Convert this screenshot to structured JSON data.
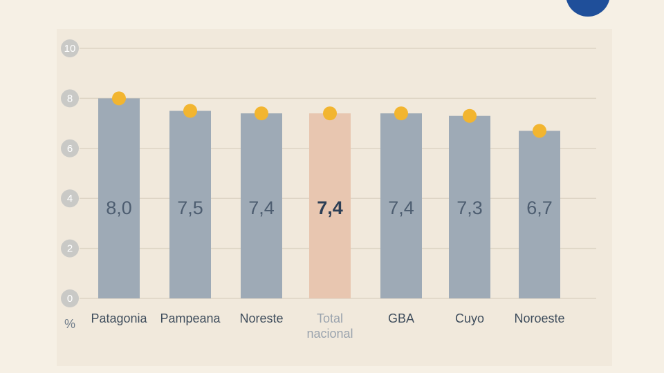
{
  "chart_data": {
    "type": "bar",
    "categories": [
      "Patagonia",
      "Pampeana",
      "Noreste",
      "Total nacional",
      "GBA",
      "Cuyo",
      "Noroeste"
    ],
    "values": [
      8.0,
      7.5,
      7.4,
      7.4,
      7.4,
      7.3,
      6.7
    ],
    "value_labels": [
      "8,0",
      "7,5",
      "7,4",
      "7,4",
      "7,4",
      "7,3",
      "6,7"
    ],
    "color": "#9eaab6",
    "highlight_index": 3,
    "highlight_color": "#e8c6b0",
    "marker_color": "#f2b530",
    "y_label": "%",
    "ylim": [
      0,
      10
    ],
    "yticks": [
      0,
      2,
      4,
      6,
      8,
      10
    ],
    "grid": true
  }
}
